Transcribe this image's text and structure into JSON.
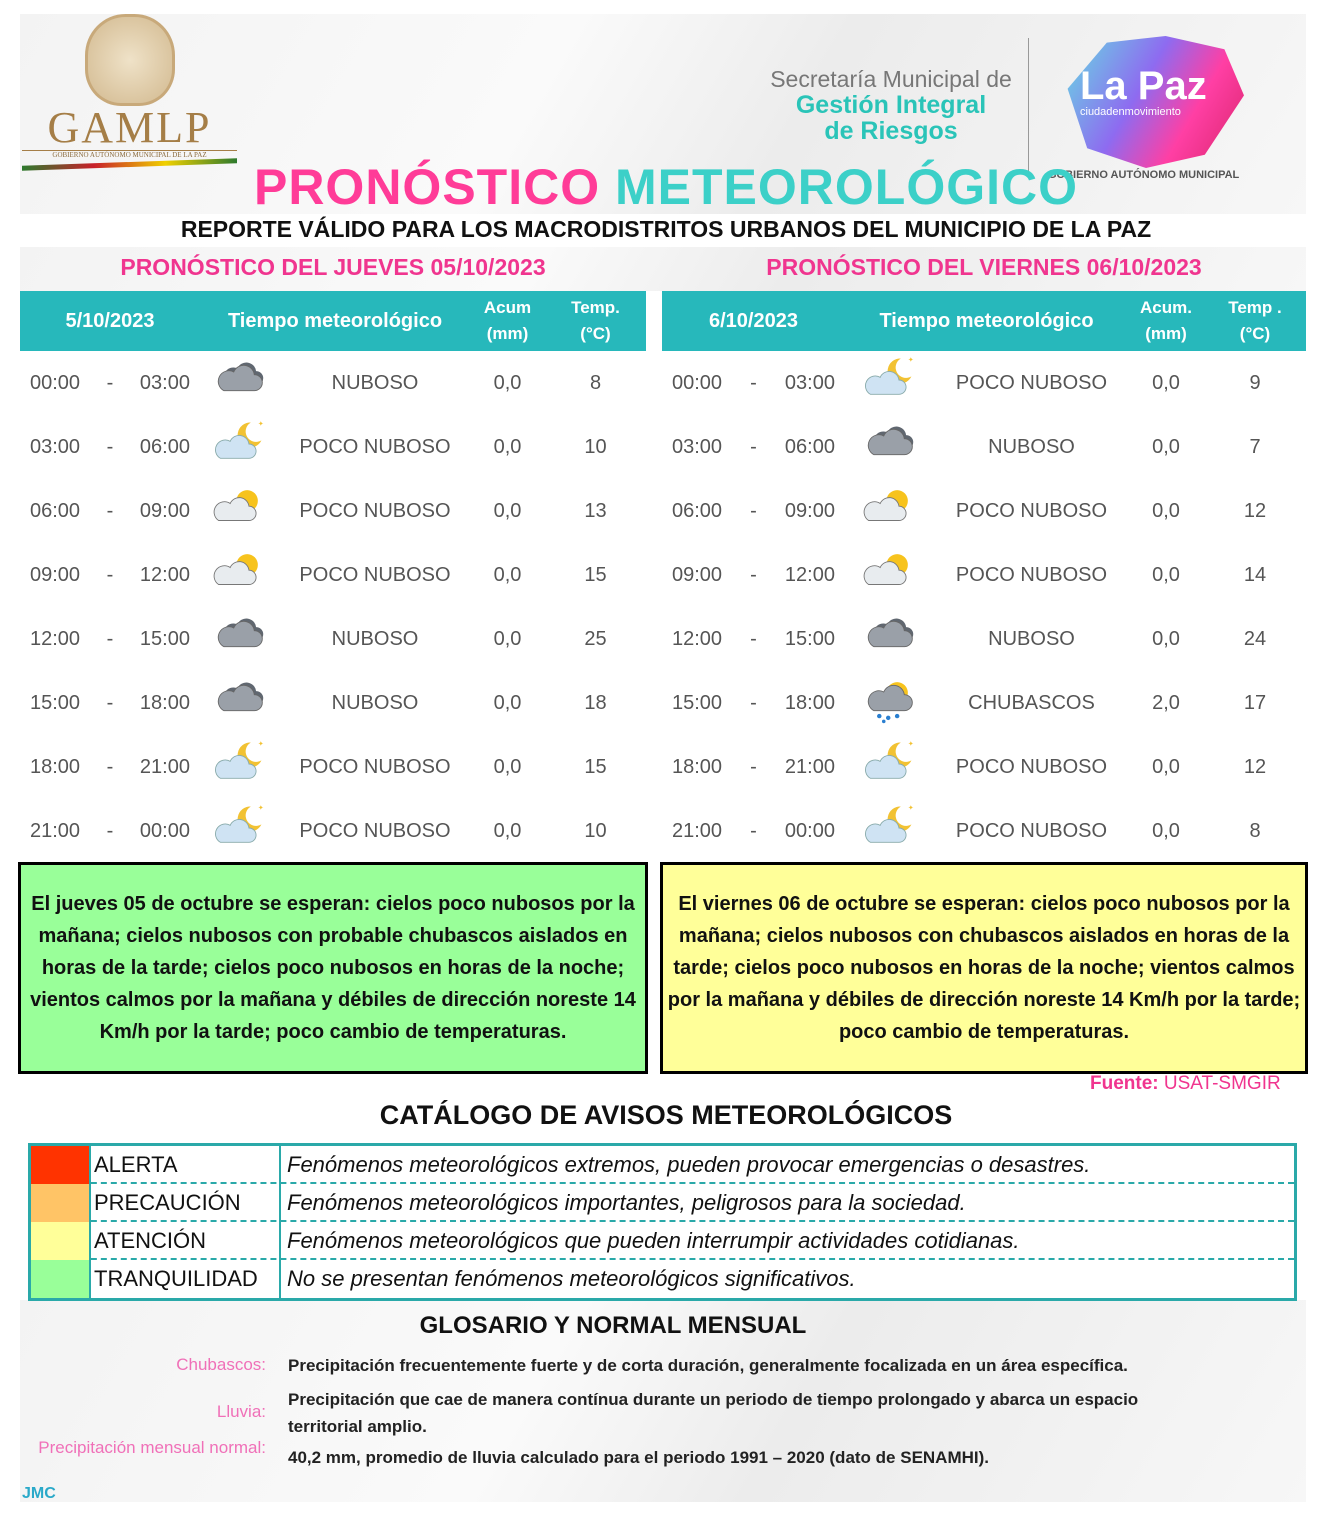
{
  "header": {
    "gamlp_logo": "GAMLP",
    "gamlp_sub": "GOBIERNO AUTÓNOMO MUNICIPAL DE LA PAZ",
    "secretaria_l1": "Secretaría Municipal de",
    "secretaria_l2": "Gestión Integral",
    "secretaria_l3": "de Riesgos",
    "lapaz_logo": "La Paz",
    "lapaz_tag": "ciudadenmovimiento",
    "lapaz_gov": "GOBIERNO AUTÓNOMO MUNICIPAL",
    "title_a": "PRONÓSTICO",
    "title_b": "METEOROLÓGICO",
    "subtitle": "REPORTE VÁLIDO PARA LOS MACRODISTRITOS URBANOS DEL MUNICIPIO DE LA PAZ"
  },
  "colors": {
    "pink": "#f0358f",
    "teal": "#27b8bb",
    "note_left": "#99ff99",
    "note_right": "#ffff99"
  },
  "days": [
    {
      "title": "PRONÓSTICO DEL JUEVES 05/10/2023",
      "col_date": "5/10/2023",
      "col_weather": "Tiempo meteorológico",
      "col_acum": "Acum",
      "col_acum_unit": "(mm)",
      "col_temp": "Temp.",
      "col_temp_unit": "(°C)",
      "rows": [
        {
          "start": "00:00",
          "end": "03:00",
          "icon": "cloudy",
          "weather": "NUBOSO",
          "acum": "0,0",
          "temp": "8"
        },
        {
          "start": "03:00",
          "end": "06:00",
          "icon": "partly-cloudy-night",
          "weather": "POCO NUBOSO",
          "acum": "0,0",
          "temp": "10"
        },
        {
          "start": "06:00",
          "end": "09:00",
          "icon": "partly-cloudy-day",
          "weather": "POCO NUBOSO",
          "acum": "0,0",
          "temp": "13"
        },
        {
          "start": "09:00",
          "end": "12:00",
          "icon": "partly-cloudy-day",
          "weather": "POCO NUBOSO",
          "acum": "0,0",
          "temp": "15"
        },
        {
          "start": "12:00",
          "end": "15:00",
          "icon": "cloudy",
          "weather": "NUBOSO",
          "acum": "0,0",
          "temp": "25"
        },
        {
          "start": "15:00",
          "end": "18:00",
          "icon": "cloudy",
          "weather": "NUBOSO",
          "acum": "0,0",
          "temp": "18"
        },
        {
          "start": "18:00",
          "end": "21:00",
          "icon": "partly-cloudy-night",
          "weather": "POCO NUBOSO",
          "acum": "0,0",
          "temp": "15"
        },
        {
          "start": "21:00",
          "end": "00:00",
          "icon": "partly-cloudy-night",
          "weather": "POCO NUBOSO",
          "acum": "0,0",
          "temp": "10"
        }
      ],
      "summary": "El jueves 05 de octubre se esperan:  cielos poco nubosos por la mañana; cielos nubosos con probable chubascos aislados en horas de la tarde; cielos poco nubosos en horas de la noche; vientos calmos por la mañana y débiles de dirección noreste 14 Km/h por la tarde; poco cambio de temperaturas."
    },
    {
      "title": "PRONÓSTICO DEL VIERNES 06/10/2023",
      "col_date": "6/10/2023",
      "col_weather": "Tiempo   meteorológico",
      "col_acum": "Acum.",
      "col_acum_unit": "(mm)",
      "col_temp": "Temp .",
      "col_temp_unit": "(°C)",
      "rows": [
        {
          "start": "00:00",
          "end": "03:00",
          "icon": "partly-cloudy-night",
          "weather": "POCO NUBOSO",
          "acum": "0,0",
          "temp": "9"
        },
        {
          "start": "03:00",
          "end": "06:00",
          "icon": "cloudy",
          "weather": "NUBOSO",
          "acum": "0,0",
          "temp": "7"
        },
        {
          "start": "06:00",
          "end": "09:00",
          "icon": "partly-cloudy-day",
          "weather": "POCO NUBOSO",
          "acum": "0,0",
          "temp": "12"
        },
        {
          "start": "09:00",
          "end": "12:00",
          "icon": "partly-cloudy-day",
          "weather": "POCO NUBOSO",
          "acum": "0,0",
          "temp": "14"
        },
        {
          "start": "12:00",
          "end": "15:00",
          "icon": "cloudy",
          "weather": "NUBOSO",
          "acum": "0,0",
          "temp": "24"
        },
        {
          "start": "15:00",
          "end": "18:00",
          "icon": "showers",
          "weather": "CHUBASCOS",
          "acum": "2,0",
          "temp": "17"
        },
        {
          "start": "18:00",
          "end": "21:00",
          "icon": "partly-cloudy-night",
          "weather": "POCO NUBOSO",
          "acum": "0,0",
          "temp": "12"
        },
        {
          "start": "21:00",
          "end": "00:00",
          "icon": "partly-cloudy-night",
          "weather": "POCO NUBOSO",
          "acum": "0,0",
          "temp": "8"
        }
      ],
      "summary": "El viernes 06 de octubre se esperan:  cielos poco nubosos por la mañana; cielos nubosos con chubascos aislados en horas de la tarde; cielos poco nubosos en horas de la noche; vientos calmos por la mañana y débiles de dirección noreste 14 Km/h por la tarde; poco cambio de temperaturas."
    }
  ],
  "source_label": "Fuente:",
  "source": "USAT-SMGIR",
  "catalog": {
    "title": "CATÁLOGO DE AVISOS METEOROLÓGICOS",
    "levels": [
      {
        "color": "#ff3300",
        "label": "ALERTA",
        "desc": "Fenómenos meteorológicos extremos, pueden provocar emergencias o desastres."
      },
      {
        "color": "#ffc466",
        "label": "PRECAUCIÓN",
        "desc": "Fenómenos meteorológicos importantes, peligrosos para la sociedad."
      },
      {
        "color": "#ffff99",
        "label": "ATENCIÓN",
        "desc": "Fenómenos meteorológicos que pueden interrumpir actividades cotidianas."
      },
      {
        "color": "#99ff99",
        "label": "TRANQUILIDAD",
        "desc": "No se presentan fenómenos meteorológicos significativos."
      }
    ]
  },
  "glossary": {
    "title": "GLOSARIO Y NORMAL MENSUAL",
    "items": [
      {
        "term": "Chubascos:",
        "def": "Precipitación frecuentemente fuerte y de corta duración, generalmente focalizada en un área específica."
      },
      {
        "term": "Lluvia:",
        "def": "Precipitación que cae de manera contínua durante un periodo de tiempo prolongado y abarca un espacio territorial amplio."
      },
      {
        "term": "Precipitación mensual normal:",
        "def": "40,2 mm, promedio de lluvia calculado para el periodo 1991 – 2020 (dato de SENAMHI)."
      }
    ]
  },
  "author": "JMC"
}
